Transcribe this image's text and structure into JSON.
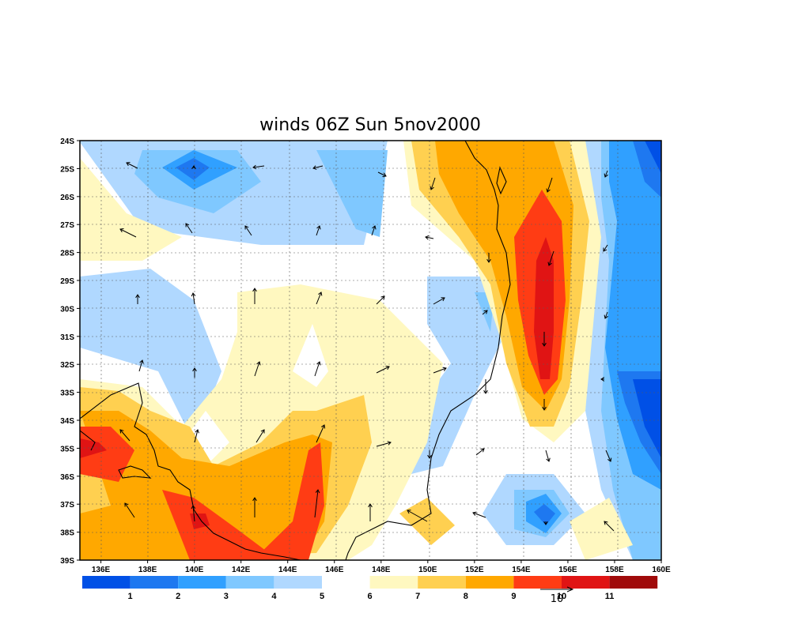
{
  "title": "winds 06Z Sun 5nov2000",
  "lon_labels": [
    "136E",
    "138E",
    "140E",
    "142E",
    "144E",
    "146E",
    "148E",
    "150E",
    "152E",
    "154E",
    "156E",
    "158E",
    "160E"
  ],
  "lat_labels": [
    "24S",
    "25S",
    "26S",
    "27S",
    "28S",
    "29S",
    "30S",
    "31S",
    "32S",
    "33S",
    "34S",
    "35S",
    "36S",
    "37S",
    "38S",
    "39S"
  ],
  "colorbar": {
    "colors": [
      "#0050e6",
      "#1e78f0",
      "#30a0ff",
      "#7fc8ff",
      "#b0d8ff",
      "#ffffff",
      "#fff8c0",
      "#ffd050",
      "#ffa800",
      "#ff3c14",
      "#e01414",
      "#a00a0a"
    ],
    "labels": [
      "1",
      "2",
      "3",
      "4",
      "5",
      "6",
      "7",
      "8",
      "9",
      "10",
      "11"
    ]
  },
  "reference_vector": {
    "label": "10"
  },
  "colors": {
    "land_outline": "#000000",
    "grid": "#5a5a5a"
  }
}
